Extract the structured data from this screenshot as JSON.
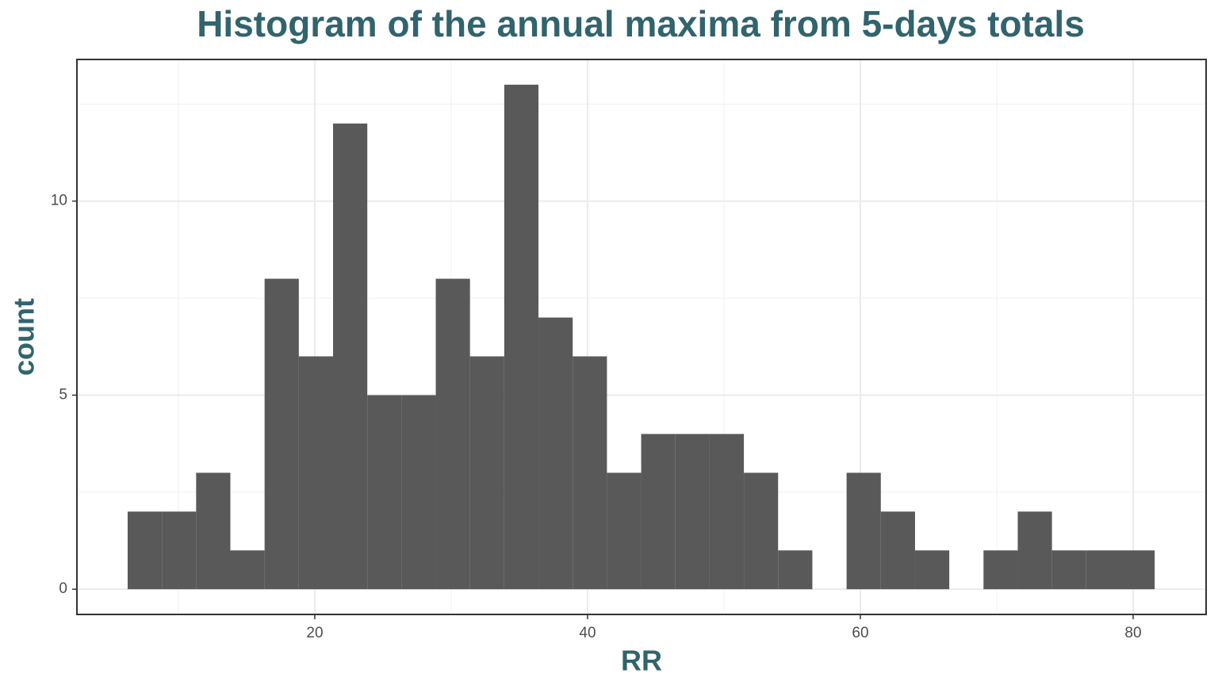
{
  "chart_data": {
    "type": "histogram",
    "title": "Histogram of the annual maxima from 5-days totals",
    "x_label": "RR",
    "y_label": "count",
    "color": "#595959",
    "bins": [
      6.28,
      8.79,
      11.3,
      13.81,
      16.32,
      18.83,
      21.34,
      23.85,
      26.36,
      28.87,
      31.38,
      33.89,
      36.4,
      38.91,
      41.42,
      43.93,
      46.44,
      48.95,
      51.46,
      53.97,
      56.48,
      58.99,
      61.5,
      64.01,
      66.52,
      69.03,
      71.54,
      74.05,
      76.56,
      79.07,
      81.58
    ],
    "values": [
      2,
      2,
      3,
      1,
      8,
      6,
      12,
      5,
      5,
      8,
      6,
      13,
      7,
      6,
      3,
      4,
      4,
      4,
      3,
      1,
      0,
      3,
      2,
      1,
      0,
      1,
      2,
      1,
      1,
      1
    ],
    "xlim": [
      2.56,
      85.35
    ],
    "ylim": [
      -0.65,
      13.65
    ],
    "xticks": [
      20,
      40,
      60,
      80
    ],
    "yticks": [
      0,
      5,
      10
    ],
    "grid": true
  }
}
